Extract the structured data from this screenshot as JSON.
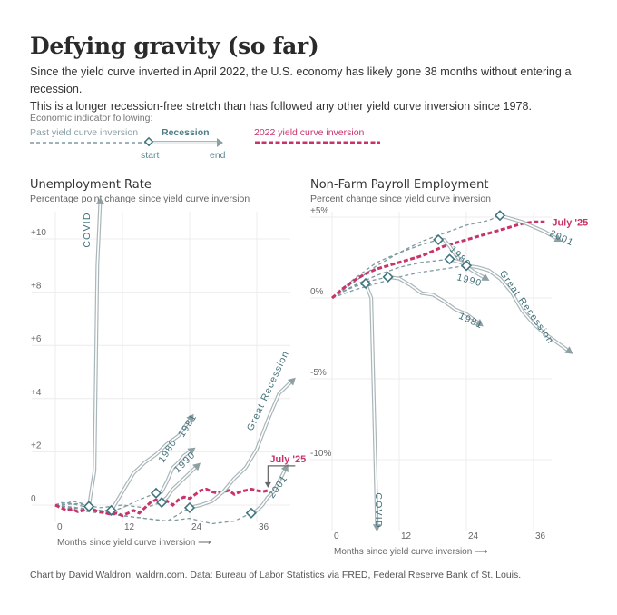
{
  "title": "Defying gravity (so far)",
  "subtitle_line1": "Since the yield curve inverted in April 2022, the U.S. economy has likely gone 38 months without entering a recession.",
  "subtitle_line2": "This is a longer recession-free stretch than has followed any other yield curve inversion since 1978.",
  "legend": {
    "heading": "Economic indicator following:",
    "past": "Past yield curve inversion",
    "recession": "Recession",
    "start": "start",
    "end": "end",
    "current": "2022 yield curve inversion"
  },
  "colors": {
    "past_line": "#7f9aa0",
    "recession_line": "#a9b6ba",
    "marker": "#3f7580",
    "label": "#3f6f79",
    "current": "#c8336a",
    "grid": "#ececec",
    "axis_text": "#666666"
  },
  "credit": "Chart by David Waldron, waldrn.com. Data: Bureau of Labor Statistics via FRED, Federal Reserve Bank of St. Louis.",
  "chart_data": [
    {
      "type": "line",
      "title": "Unemployment Rate",
      "subtitle": "Percentage point change since yield curve inversion",
      "xlabel": "Months since yield curve inversion ⟶",
      "ylabel": "",
      "xlim": [
        -1,
        42
      ],
      "ylim": [
        -1.2,
        11.5
      ],
      "xticks": [
        0,
        12,
        24,
        36
      ],
      "xtick_labels": [
        "0",
        "12",
        "24",
        "36"
      ],
      "yticks": [
        0,
        2,
        4,
        6,
        8,
        10
      ],
      "ytick_labels": [
        "0",
        "+2",
        "+4",
        "+6",
        "+8",
        "+10"
      ],
      "grid": true,
      "current_label": "July '25",
      "current": {
        "name": "2022 yield curve inversion",
        "x": [
          0,
          1,
          2,
          3,
          4,
          5,
          6,
          7,
          8,
          9,
          10,
          11,
          12,
          13,
          14,
          15,
          16,
          17,
          18,
          19,
          20,
          21,
          22,
          23,
          24,
          25,
          26,
          27,
          28,
          29,
          30,
          31,
          32,
          33,
          34,
          35,
          36,
          37,
          38
        ],
        "y": [
          0,
          -0.1,
          -0.2,
          -0.15,
          -0.25,
          -0.2,
          -0.1,
          -0.2,
          -0.25,
          -0.3,
          -0.35,
          -0.3,
          -0.4,
          -0.3,
          -0.2,
          -0.3,
          -0.1,
          0.1,
          0.2,
          0.05,
          0.15,
          0.0,
          0.2,
          0.3,
          0.25,
          0.4,
          0.55,
          0.6,
          0.5,
          0.45,
          0.5,
          0.55,
          0.4,
          0.5,
          0.55,
          0.6,
          0.55,
          0.5,
          0.55
        ]
      },
      "series": [
        {
          "name": "COVID",
          "past_x": [
            0,
            1,
            2,
            3,
            4,
            5,
            6
          ],
          "past_y": [
            0,
            0.1,
            0.05,
            0.15,
            0.1,
            0.05,
            -0.05
          ],
          "recession_x": [
            6,
            7,
            7.5,
            8
          ],
          "recession_y": [
            -0.05,
            1.3,
            9.0,
            11.3
          ]
        },
        {
          "name": "1981",
          "past_x": [
            0,
            2,
            4,
            6,
            8,
            10
          ],
          "past_y": [
            0,
            0.1,
            0.0,
            -0.1,
            -0.2,
            -0.2
          ],
          "recession_x": [
            10,
            12,
            14,
            16,
            18,
            20,
            22,
            24
          ],
          "recession_y": [
            -0.2,
            0.5,
            1.2,
            1.6,
            1.9,
            2.3,
            2.6,
            3.2
          ]
        },
        {
          "name": "1980",
          "past_x": [
            0,
            3,
            6,
            9,
            12,
            15,
            18
          ],
          "past_y": [
            0,
            -0.1,
            -0.2,
            -0.3,
            -0.1,
            0.2,
            0.45
          ],
          "recession_x": [
            18,
            19,
            20,
            21,
            22,
            23,
            24
          ],
          "recession_y": [
            0.45,
            0.5,
            0.9,
            1.4,
            1.6,
            1.85,
            2.0
          ]
        },
        {
          "name": "1990",
          "past_x": [
            0,
            4,
            8,
            12,
            16,
            19
          ],
          "past_y": [
            0,
            0.05,
            -0.1,
            0.0,
            -0.1,
            0.1
          ],
          "recession_x": [
            19,
            20,
            21,
            22,
            23,
            24,
            25
          ],
          "recession_y": [
            0.1,
            0.3,
            0.6,
            0.8,
            1.0,
            1.2,
            1.4
          ]
        },
        {
          "name": "Great Recession",
          "past_x": [
            0,
            4,
            8,
            12,
            16,
            20,
            24
          ],
          "past_y": [
            0,
            -0.1,
            -0.2,
            -0.4,
            -0.5,
            -0.6,
            -0.1
          ],
          "recession_x": [
            24,
            26,
            28,
            30,
            32,
            34,
            36,
            38,
            40,
            42
          ],
          "recession_y": [
            -0.1,
            0.0,
            0.15,
            0.5,
            1.0,
            1.4,
            2.1,
            3.2,
            4.2,
            4.6
          ]
        },
        {
          "name": "2001",
          "past_x": [
            0,
            4,
            8,
            12,
            16,
            20,
            24,
            28,
            32,
            35
          ],
          "past_y": [
            0,
            -0.2,
            -0.3,
            -0.4,
            -0.5,
            -0.6,
            -0.5,
            -0.7,
            -0.6,
            -0.3
          ],
          "recession_x": [
            35,
            36,
            37,
            38,
            39,
            40,
            41
          ],
          "recession_y": [
            -0.3,
            -0.2,
            0.0,
            0.3,
            0.5,
            0.9,
            1.3
          ]
        }
      ]
    },
    {
      "type": "line",
      "title": "Non-Farm Payroll Employment",
      "subtitle": "Percent change since yield curve inversion",
      "xlabel": "Months since yield curve inversion ⟶",
      "ylabel": "",
      "xlim": [
        -1,
        42
      ],
      "ylim": [
        -14.5,
        5.5
      ],
      "xticks": [
        0,
        12,
        24,
        36
      ],
      "xtick_labels": [
        "0",
        "12",
        "24",
        "36"
      ],
      "yticks": [
        5,
        0,
        -5,
        -10
      ],
      "ytick_labels": [
        "+5%",
        "0%",
        "-5%",
        "-10%"
      ],
      "grid": true,
      "current_label": "July '25",
      "current": {
        "name": "2022 yield curve inversion",
        "x": [
          0,
          2,
          4,
          6,
          8,
          10,
          12,
          14,
          16,
          18,
          20,
          22,
          24,
          26,
          28,
          30,
          32,
          34,
          36,
          38
        ],
        "y": [
          0,
          0.6,
          1.1,
          1.5,
          1.8,
          2.0,
          2.2,
          2.4,
          2.6,
          2.9,
          3.2,
          3.4,
          3.6,
          3.8,
          4.0,
          4.2,
          4.4,
          4.6,
          4.7,
          4.7
        ]
      },
      "series": [
        {
          "name": "COVID",
          "past_x": [
            0,
            2,
            4,
            6
          ],
          "past_y": [
            0,
            0.4,
            0.7,
            0.9
          ],
          "recession_x": [
            6,
            7,
            7.5,
            8
          ],
          "recession_y": [
            0.9,
            0.0,
            -7.0,
            -14.0
          ]
        },
        {
          "name": "1981",
          "past_x": [
            0,
            3,
            6,
            10
          ],
          "past_y": [
            0,
            0.6,
            1.0,
            1.3
          ],
          "recession_x": [
            10,
            12,
            14,
            16,
            18,
            20,
            22,
            24,
            26
          ],
          "recession_y": [
            1.3,
            1.2,
            0.8,
            0.3,
            0.2,
            -0.2,
            -0.7,
            -1.0,
            -1.5
          ]
        },
        {
          "name": "1980",
          "past_x": [
            0,
            4,
            8,
            12,
            16,
            19
          ],
          "past_y": [
            0,
            1.2,
            2.2,
            2.8,
            3.3,
            3.6
          ],
          "recession_x": [
            19,
            20,
            21,
            22,
            23,
            24
          ],
          "recession_y": [
            3.6,
            3.6,
            3.2,
            2.7,
            2.3,
            2.0
          ]
        },
        {
          "name": "1990",
          "past_x": [
            0,
            4,
            8,
            12,
            16,
            21
          ],
          "past_y": [
            0,
            0.8,
            1.4,
            1.9,
            2.2,
            2.4
          ],
          "recession_x": [
            21,
            23,
            25,
            27
          ],
          "recession_y": [
            2.4,
            2.2,
            1.7,
            1.3
          ]
        },
        {
          "name": "Great Recession",
          "past_x": [
            0,
            4,
            8,
            12,
            16,
            20,
            24
          ],
          "past_y": [
            0,
            0.5,
            0.9,
            1.3,
            1.6,
            1.8,
            2.0
          ],
          "recession_x": [
            24,
            26,
            28,
            30,
            32,
            34,
            36,
            38,
            40,
            42
          ],
          "recession_y": [
            2.0,
            1.9,
            1.7,
            1.2,
            0.4,
            -0.8,
            -1.6,
            -2.2,
            -2.7,
            -3.2
          ]
        },
        {
          "name": "2001",
          "past_x": [
            0,
            4,
            8,
            12,
            16,
            20,
            24,
            28,
            30
          ],
          "past_y": [
            0,
            1.0,
            2.0,
            2.8,
            3.5,
            4.0,
            4.5,
            4.8,
            5.1
          ],
          "recession_x": [
            30,
            32,
            34,
            36,
            38,
            40
          ],
          "recession_y": [
            5.1,
            4.9,
            4.7,
            4.4,
            4.1,
            3.7
          ]
        }
      ]
    }
  ]
}
